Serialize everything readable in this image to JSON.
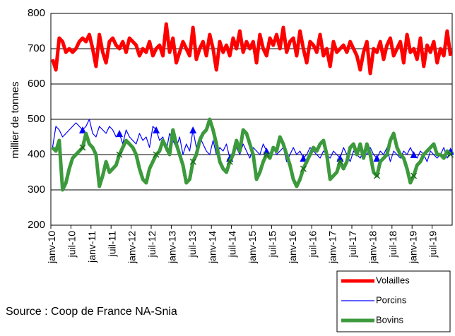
{
  "chart_data": {
    "type": "line",
    "y_label": "millier de tonnes",
    "source": "Source : Coop de France NA-Snia",
    "ylim": [
      200,
      800
    ],
    "yticks": [
      200,
      300,
      400,
      500,
      600,
      700,
      800
    ],
    "grid": true,
    "categories": [
      "janv-10",
      null,
      null,
      null,
      null,
      null,
      "juil-10",
      null,
      null,
      null,
      null,
      null,
      "janv-11",
      null,
      null,
      null,
      null,
      null,
      "juil-11",
      null,
      null,
      null,
      null,
      null,
      "janv-12",
      null,
      null,
      null,
      null,
      null,
      "juil-12",
      null,
      null,
      null,
      null,
      null,
      "janv-13",
      null,
      null,
      null,
      null,
      null,
      "juil-13",
      null,
      null,
      null,
      null,
      null,
      "janv-14",
      null,
      null,
      null,
      null,
      null,
      "juil-14",
      null,
      null,
      null,
      null,
      null,
      "janv-15",
      null,
      null,
      null,
      null,
      null,
      "juil-15",
      null,
      null,
      null,
      null,
      null,
      "janv-16",
      null,
      null,
      null,
      null,
      null,
      "juil-16",
      null,
      null,
      null,
      null,
      null,
      "janv-17",
      null,
      null,
      null,
      null,
      null,
      "juil-17",
      null,
      null,
      null,
      null,
      null,
      "janv-18",
      null,
      null,
      null,
      null,
      null,
      "juil-18",
      null,
      null,
      null,
      null,
      null,
      "janv-19",
      null,
      null,
      null,
      null,
      null,
      "juil-19",
      null,
      null,
      null,
      null,
      null
    ],
    "series": [
      {
        "name": "Volailles",
        "color": "#ff0000",
        "values": [
          670,
          640,
          730,
          720,
          690,
          700,
          690,
          700,
          720,
          730,
          720,
          740,
          700,
          650,
          740,
          690,
          660,
          720,
          730,
          710,
          700,
          720,
          690,
          730,
          720,
          710,
          680,
          700,
          690,
          720,
          680,
          700,
          710,
          680,
          770,
          690,
          730,
          660,
          690,
          720,
          700,
          680,
          760,
          670,
          700,
          720,
          680,
          740,
          700,
          640,
          720,
          690,
          710,
          680,
          730,
          700,
          750,
          690,
          720,
          700,
          720,
          660,
          740,
          700,
          680,
          730,
          710,
          740,
          700,
          760,
          690,
          720,
          730,
          680,
          750,
          700,
          660,
          720,
          710,
          690,
          740,
          680,
          700,
          650,
          720,
          690,
          700,
          710,
          690,
          720,
          700,
          680,
          640,
          690,
          720,
          630,
          700,
          690,
          720,
          670,
          710,
          730,
          680,
          700,
          720,
          660,
          740,
          690,
          700,
          670,
          730,
          650,
          710,
          690,
          720,
          660,
          700,
          680,
          750,
          680
        ]
      },
      {
        "name": "Porcins",
        "color": "#0000ff",
        "values": [
          420,
          480,
          470,
          450,
          460,
          470,
          480,
          490,
          480,
          470,
          480,
          500,
          460,
          450,
          480,
          470,
          460,
          480,
          470,
          450,
          460,
          430,
          470,
          450,
          440,
          430,
          460,
          440,
          450,
          420,
          480,
          470,
          440,
          450,
          410,
          460,
          440,
          420,
          450,
          400,
          430,
          410,
          470,
          420,
          450,
          430,
          410,
          400,
          440,
          400,
          420,
          410,
          430,
          390,
          410,
          420,
          400,
          430,
          410,
          390,
          420,
          410,
          400,
          430,
          410,
          390,
          420,
          400,
          410,
          420,
          380,
          400,
          420,
          400,
          410,
          390,
          400,
          420,
          410,
          400,
          390,
          410,
          400,
          390,
          410,
          400,
          390,
          420,
          400,
          380,
          410,
          400,
          390,
          410,
          400,
          420,
          400,
          390,
          410,
          400,
          420,
          380,
          410,
          400,
          390,
          410,
          400,
          420,
          400,
          390,
          410,
          400,
          380,
          410,
          400,
          390,
          400,
          420,
          390,
          410
        ]
      },
      {
        "name": "Bovins",
        "color": "#3c9a3c",
        "values": [
          420,
          410,
          440,
          300,
          320,
          360,
          390,
          400,
          410,
          420,
          460,
          430,
          420,
          400,
          310,
          340,
          380,
          350,
          360,
          370,
          400,
          420,
          440,
          430,
          420,
          400,
          360,
          330,
          320,
          360,
          380,
          400,
          410,
          440,
          420,
          400,
          470,
          430,
          400,
          370,
          320,
          330,
          380,
          400,
          440,
          460,
          470,
          500,
          470,
          430,
          380,
          360,
          350,
          380,
          400,
          440,
          410,
          470,
          460,
          430,
          400,
          330,
          350,
          380,
          400,
          390,
          420,
          410,
          450,
          430,
          400,
          370,
          330,
          310,
          330,
          360,
          380,
          400,
          420,
          410,
          430,
          440,
          400,
          330,
          340,
          350,
          380,
          360,
          380,
          420,
          430,
          400,
          430,
          390,
          430,
          400,
          350,
          340,
          380,
          390,
          400,
          440,
          460,
          420,
          400,
          390,
          360,
          320,
          340,
          370,
          380,
          400,
          410,
          420,
          430,
          400,
          400,
          390,
          410,
          400
        ]
      }
    ]
  }
}
